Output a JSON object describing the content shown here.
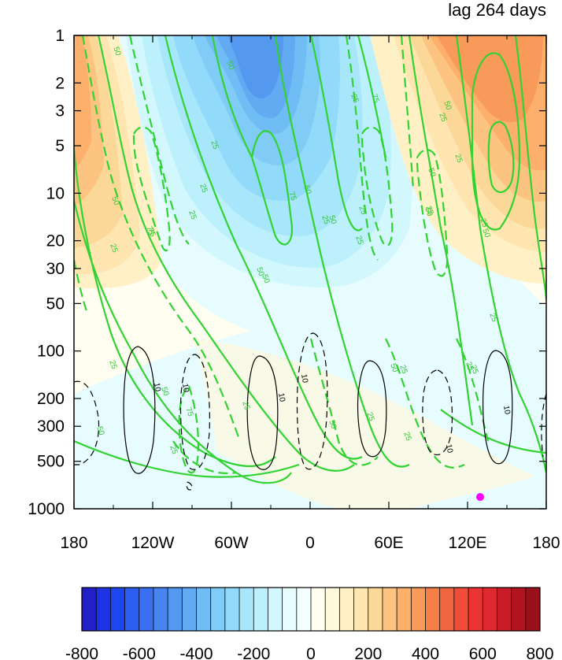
{
  "chart_data": {
    "type": "heatmap",
    "title": "lag 264 days",
    "x_tick_labels": [
      "180",
      "120W",
      "60W",
      "0",
      "60E",
      "120E",
      "180"
    ],
    "y_tick_labels": [
      "1",
      "2",
      "3",
      "5",
      "10",
      "20",
      "30",
      "50",
      "100",
      "200",
      "300",
      "500",
      "1000"
    ],
    "y_tick_values": [
      1,
      2,
      3,
      5,
      10,
      20,
      30,
      50,
      100,
      200,
      300,
      500,
      1000
    ],
    "y_scale": "log",
    "y_reversed": true,
    "ylim": [
      1,
      1000
    ],
    "xlim": [
      -180,
      180
    ],
    "colorbar": {
      "levels": [
        -800,
        -750,
        -700,
        -650,
        -600,
        -550,
        -500,
        -450,
        -400,
        -350,
        -300,
        -250,
        -200,
        -150,
        -100,
        -50,
        0,
        50,
        100,
        150,
        200,
        250,
        300,
        350,
        400,
        450,
        500,
        550,
        600,
        650,
        700,
        750,
        800
      ],
      "tick_labels": [
        "-800",
        "-600",
        "-400",
        "-200",
        "0",
        "200",
        "400",
        "600",
        "800"
      ],
      "colors": [
        "#2020c8",
        "#1e32e6",
        "#1e46ee",
        "#2c5cf0",
        "#3a70f0",
        "#4884f0",
        "#5498f0",
        "#62aaf2",
        "#70bcf4",
        "#80ccf6",
        "#92dafa",
        "#a8e6fc",
        "#bcf0fd",
        "#d2f8fe",
        "#e6fcfe",
        "#f4feff",
        "#fffef0",
        "#fff8dc",
        "#fff0c6",
        "#ffe6b0",
        "#fcd898",
        "#fcc480",
        "#fcb06c",
        "#f89a5a",
        "#f48048",
        "#f06640",
        "#f04c3a",
        "#ec3434",
        "#e02830",
        "#c81c28",
        "#b01420",
        "#98101c"
      ]
    },
    "contour_labels_green": [
      "50",
      "50",
      "25",
      "25",
      "50",
      "75",
      "25",
      "25",
      "50",
      "75",
      "25",
      "25",
      "50",
      "75",
      "50",
      "25",
      "25",
      "25",
      "50",
      "75",
      "25",
      "25",
      "50",
      "75",
      "50",
      "25",
      "50",
      "50",
      "25",
      "25",
      "25",
      "50",
      "25",
      "25",
      "50",
      "25",
      "25",
      "50",
      "50",
      "25",
      "25"
    ],
    "contour_labels_black": [
      "10",
      "10",
      "10",
      "10",
      "10",
      "10"
    ],
    "marker": {
      "x": 130,
      "y": 900,
      "color": "#ff00ff"
    }
  }
}
